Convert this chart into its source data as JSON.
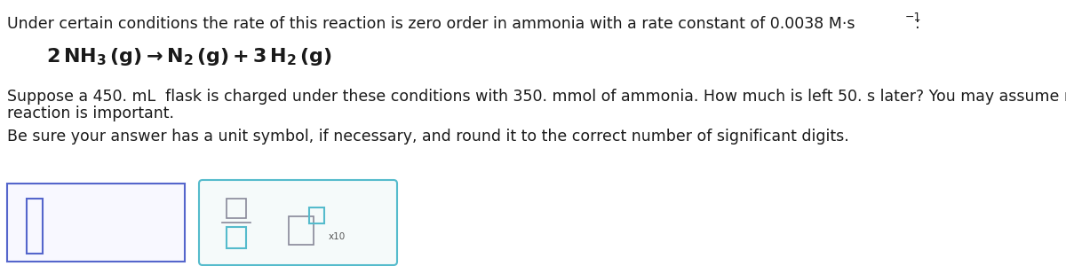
{
  "background_color": "#ffffff",
  "line1": "Under certain conditions the rate of this reaction is zero order in ammonia with a rate constant of 0.0038 M·s",
  "line1_sup": "−1",
  "line1_end": ":",
  "line2_eq": "2 NH$_3$ ($g$) → N$_2$ ($g$) + 3 H$_2$ ($g$)",
  "line3a": "Suppose a 450. mL  flask is charged under these conditions with 350. mmol of ammonia. How much is left 50. s later? You may assume no other",
  "line3b": "reaction is important.",
  "line4": "Be sure your answer has a unit symbol, if necessary, and round it to the correct number of significant digits.",
  "text_color": "#1a1a1a",
  "font_size_main": 12.5,
  "font_size_eq": 16,
  "box1_color": "#5566cc",
  "box2_color": "#55bbcc",
  "inner_cursor_color": "#5566cc",
  "frac_line_color": "#888899",
  "frac_box_color": "#888899",
  "frac_teal_color": "#55bbcc",
  "pow_box_color": "#888899",
  "pow_teal_color": "#55bbcc"
}
